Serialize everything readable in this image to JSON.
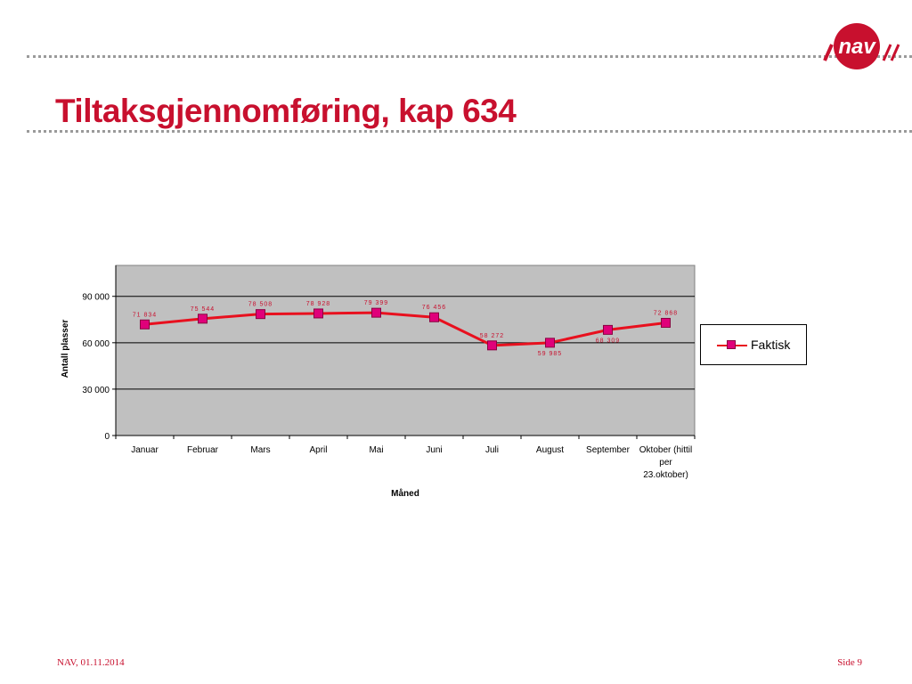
{
  "slide": {
    "title": "Tiltaksgjennomføring, kap 634",
    "footer_left": "NAV, 01.11.2014",
    "footer_right": "Side 9",
    "logo_text": "nav",
    "accent_color": "#c8102e"
  },
  "chart_data": {
    "type": "line",
    "title": "",
    "xlabel": "Måned",
    "ylabel": "Antall plasser",
    "ylim": [
      0,
      110000
    ],
    "yticks": [
      0,
      30000,
      60000,
      90000
    ],
    "ytick_labels": [
      "0",
      "30 000",
      "60 000",
      "90 000"
    ],
    "categories": [
      [
        "Januar"
      ],
      [
        "Februar"
      ],
      [
        "Mars"
      ],
      [
        "April"
      ],
      [
        "Mai"
      ],
      [
        "Juni"
      ],
      [
        "Juli"
      ],
      [
        "August"
      ],
      [
        "September"
      ],
      [
        "Oktober (hittil",
        "per",
        "23.oktober)"
      ]
    ],
    "grid": true,
    "plot_background": "#c0c0c0",
    "legend_position": "right",
    "series": [
      {
        "name": "Faktisk",
        "color": "#e8101e",
        "marker_color": "#e0007a",
        "values": [
          71834,
          75544,
          78508,
          78928,
          79399,
          76456,
          58272,
          59985,
          68309,
          72868
        ],
        "labels": [
          "71 834",
          "75 544",
          "78 508",
          "78 928",
          "79 399",
          "76 456",
          "58 272",
          "59 985",
          "68 309",
          "72 868"
        ]
      }
    ]
  }
}
